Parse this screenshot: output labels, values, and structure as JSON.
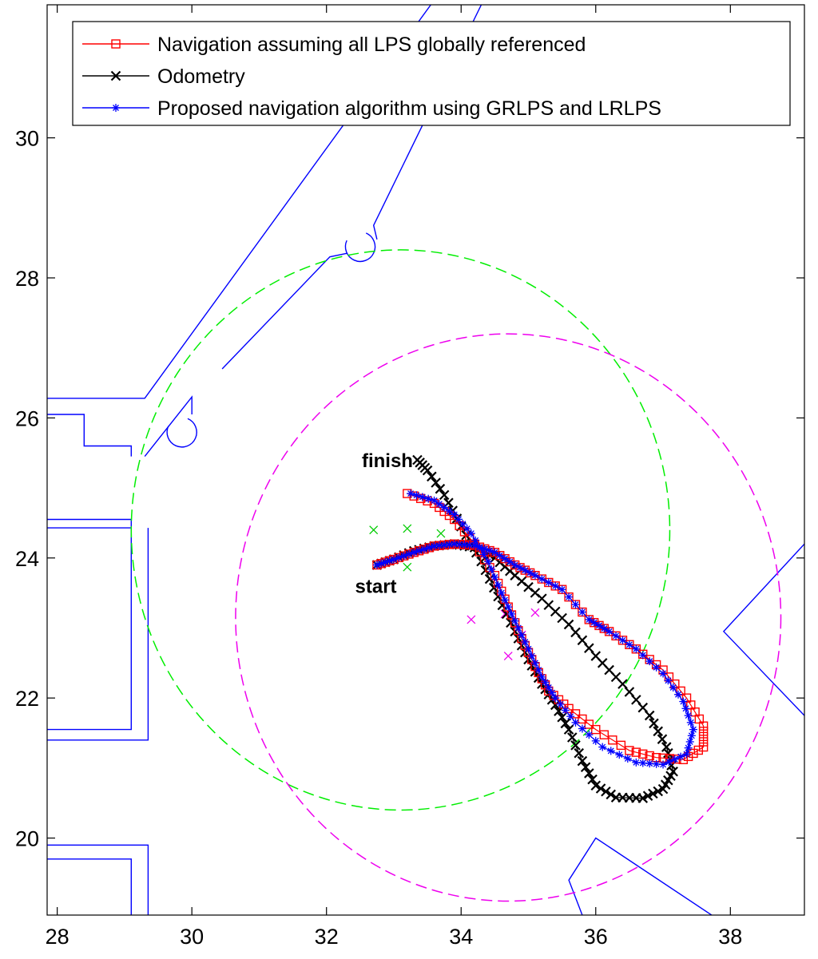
{
  "chart_data": {
    "type": "line",
    "title": "",
    "xlabel": "",
    "ylabel": "",
    "xlim": [
      27.85,
      39.1
    ],
    "ylim": [
      18.9,
      31.9
    ],
    "x_ticks": [
      28,
      30,
      32,
      34,
      36,
      38
    ],
    "y_ticks": [
      20,
      22,
      24,
      26,
      28,
      30
    ],
    "grid": false,
    "legend_position": "top",
    "legend": [
      {
        "label": "Navigation assuming all LPS globally referenced",
        "color": "#ff0000",
        "marker": "square"
      },
      {
        "label": "Odometry",
        "color": "#000000",
        "marker": "x"
      },
      {
        "label": "Proposed navigation algorithm using GRLPS and LRLPS",
        "color": "#0000ff",
        "marker": "asterisk"
      }
    ],
    "annotations": [
      {
        "text": "finish",
        "x": 33.0,
        "y": 25.3
      },
      {
        "text": "start",
        "x": 32.9,
        "y": 23.5
      }
    ],
    "series": [
      {
        "name": "Navigation assuming all LPS globally referenced",
        "color": "#ff0000",
        "marker": "square",
        "x": [
          32.75,
          33.0,
          33.3,
          33.6,
          33.9,
          34.2,
          34.5,
          34.8,
          35.1,
          35.5,
          35.9,
          36.2,
          36.6,
          37.0,
          37.35,
          37.6,
          37.6,
          37.3,
          36.9,
          36.5,
          36.0,
          35.6,
          35.3,
          35.1,
          34.9,
          34.7,
          34.5,
          34.2,
          33.9,
          33.6,
          33.2
        ],
        "y": [
          23.9,
          23.98,
          24.08,
          24.17,
          24.2,
          24.18,
          24.08,
          23.9,
          23.75,
          23.55,
          23.12,
          22.95,
          22.7,
          22.4,
          22.0,
          21.6,
          21.3,
          21.12,
          21.15,
          21.25,
          21.55,
          21.85,
          22.1,
          22.45,
          22.85,
          23.3,
          23.75,
          24.2,
          24.55,
          24.78,
          24.92
        ]
      },
      {
        "name": "Odometry",
        "color": "#000000",
        "marker": "x",
        "x": [
          32.75,
          33.0,
          33.3,
          33.6,
          33.9,
          34.2,
          34.5,
          34.8,
          35.2,
          35.6,
          36.0,
          36.4,
          36.8,
          37.05,
          37.15,
          37.0,
          36.7,
          36.3,
          36.0,
          35.8,
          35.6,
          35.4,
          35.2,
          35.0,
          34.8,
          34.55,
          34.3,
          34.0,
          33.75,
          33.5,
          33.35
        ],
        "y": [
          23.9,
          23.98,
          24.1,
          24.17,
          24.2,
          24.15,
          24.0,
          23.75,
          23.42,
          23.05,
          22.6,
          22.2,
          21.75,
          21.3,
          20.95,
          20.7,
          20.57,
          20.58,
          20.75,
          21.1,
          21.55,
          21.9,
          22.2,
          22.55,
          22.95,
          23.45,
          23.95,
          24.45,
          24.9,
          25.25,
          25.4
        ]
      },
      {
        "name": "Proposed navigation algorithm using GRLPS and LRLPS",
        "color": "#0000ff",
        "marker": "asterisk",
        "x": [
          32.75,
          33.0,
          33.3,
          33.6,
          33.9,
          34.2,
          34.5,
          34.8,
          35.1,
          35.5,
          35.9,
          36.2,
          36.6,
          37.0,
          37.3,
          37.45,
          37.35,
          37.0,
          36.6,
          36.1,
          35.7,
          35.4,
          35.2,
          35.0,
          34.8,
          34.6,
          34.4,
          34.15,
          33.9,
          33.6,
          33.25
        ],
        "y": [
          23.9,
          23.98,
          24.08,
          24.17,
          24.2,
          24.18,
          24.08,
          23.9,
          23.75,
          23.55,
          23.12,
          22.95,
          22.7,
          22.35,
          21.95,
          21.55,
          21.2,
          21.05,
          21.08,
          21.3,
          21.65,
          22.0,
          22.3,
          22.7,
          23.1,
          23.5,
          23.95,
          24.35,
          24.62,
          24.82,
          24.92
        ]
      }
    ],
    "green_cross_points": [
      [
        32.7,
        24.4
      ],
      [
        33.2,
        24.42
      ],
      [
        33.2,
        23.87
      ],
      [
        33.7,
        24.35
      ]
    ],
    "magenta_cross_points": [
      [
        34.15,
        23.12
      ],
      [
        34.7,
        22.6
      ],
      [
        34.65,
        23.2
      ],
      [
        35.1,
        23.22
      ],
      [
        34.9,
        22.9
      ]
    ],
    "circles": [
      {
        "cx": 33.1,
        "cy": 24.4,
        "r": 4.0,
        "color": "#00ee00"
      },
      {
        "cx": 34.7,
        "cy": 23.15,
        "r": 4.05,
        "color": "#ee00ee"
      }
    ],
    "walls_color": "#0000ff"
  }
}
